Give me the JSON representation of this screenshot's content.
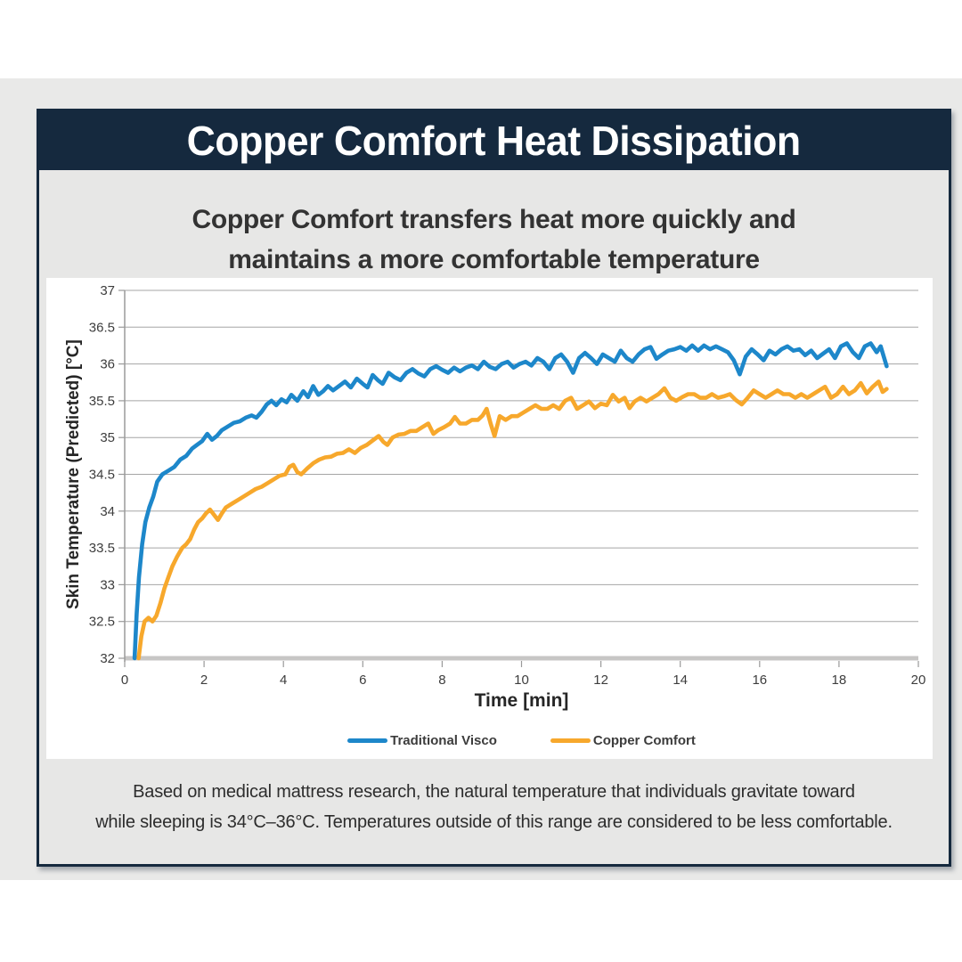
{
  "header": {
    "title": "Copper Comfort Heat Dissipation"
  },
  "subtitle": {
    "line1": "Copper Comfort transfers heat more quickly and",
    "line2": "maintains a more comfortable temperature"
  },
  "footer": {
    "line1": "Based on medical mattress research, the natural temperature that individuals gravitate toward",
    "line2": "while sleeping is 34°C–36°C. Temperatures outside of this range are considered to be less comfortable."
  },
  "colors": {
    "navy": "#15293e",
    "card_bg": "#e7e7e6",
    "band_bg": "#e9e9e8",
    "panel_bg": "#ffffff",
    "gridline": "#a5a5a5",
    "axis": "#9a9a9a",
    "baseline": "#c7c6c5",
    "blue": "#1d87ca",
    "orange": "#f7a82c"
  },
  "chart_data": {
    "type": "line",
    "title": "",
    "xlabel": "Time [min]",
    "ylabel": "Skin Temperature (Predicted) [°C]",
    "xlim": [
      0,
      20
    ],
    "ylim": [
      32,
      37
    ],
    "xtick_step": 2,
    "ytick_step": 0.5,
    "grid": "horizontal",
    "legend_position": "bottom",
    "series": [
      {
        "name": "Traditional Visco",
        "color": "#1d87ca",
        "points": [
          [
            0.25,
            32.0
          ],
          [
            0.3,
            32.6
          ],
          [
            0.36,
            33.1
          ],
          [
            0.44,
            33.55
          ],
          [
            0.52,
            33.85
          ],
          [
            0.62,
            34.05
          ],
          [
            0.72,
            34.2
          ],
          [
            0.82,
            34.4
          ],
          [
            0.95,
            34.5
          ],
          [
            1.1,
            34.55
          ],
          [
            1.25,
            34.6
          ],
          [
            1.4,
            34.7
          ],
          [
            1.55,
            34.75
          ],
          [
            1.7,
            34.85
          ],
          [
            1.82,
            34.9
          ],
          [
            1.95,
            34.95
          ],
          [
            2.08,
            35.05
          ],
          [
            2.2,
            34.97
          ],
          [
            2.32,
            35.02
          ],
          [
            2.45,
            35.1
          ],
          [
            2.6,
            35.15
          ],
          [
            2.75,
            35.2
          ],
          [
            2.9,
            35.22
          ],
          [
            3.05,
            35.27
          ],
          [
            3.2,
            35.3
          ],
          [
            3.32,
            35.27
          ],
          [
            3.45,
            35.35
          ],
          [
            3.58,
            35.45
          ],
          [
            3.7,
            35.5
          ],
          [
            3.82,
            35.44
          ],
          [
            3.95,
            35.52
          ],
          [
            4.08,
            35.48
          ],
          [
            4.2,
            35.58
          ],
          [
            4.35,
            35.5
          ],
          [
            4.5,
            35.63
          ],
          [
            4.62,
            35.55
          ],
          [
            4.75,
            35.7
          ],
          [
            4.88,
            35.58
          ],
          [
            5.0,
            35.63
          ],
          [
            5.12,
            35.7
          ],
          [
            5.25,
            35.64
          ],
          [
            5.4,
            35.7
          ],
          [
            5.55,
            35.76
          ],
          [
            5.7,
            35.68
          ],
          [
            5.85,
            35.8
          ],
          [
            6.0,
            35.73
          ],
          [
            6.12,
            35.68
          ],
          [
            6.25,
            35.85
          ],
          [
            6.38,
            35.78
          ],
          [
            6.5,
            35.73
          ],
          [
            6.65,
            35.88
          ],
          [
            6.8,
            35.82
          ],
          [
            6.95,
            35.78
          ],
          [
            7.1,
            35.88
          ],
          [
            7.25,
            35.93
          ],
          [
            7.4,
            35.87
          ],
          [
            7.55,
            35.83
          ],
          [
            7.7,
            35.93
          ],
          [
            7.85,
            35.97
          ],
          [
            8.0,
            35.92
          ],
          [
            8.15,
            35.88
          ],
          [
            8.3,
            35.95
          ],
          [
            8.45,
            35.9
          ],
          [
            8.6,
            35.95
          ],
          [
            8.75,
            35.98
          ],
          [
            8.9,
            35.93
          ],
          [
            9.05,
            36.03
          ],
          [
            9.2,
            35.96
          ],
          [
            9.35,
            35.93
          ],
          [
            9.5,
            36.0
          ],
          [
            9.65,
            36.03
          ],
          [
            9.8,
            35.95
          ],
          [
            9.95,
            36.0
          ],
          [
            10.1,
            36.03
          ],
          [
            10.25,
            35.98
          ],
          [
            10.4,
            36.08
          ],
          [
            10.55,
            36.03
          ],
          [
            10.7,
            35.93
          ],
          [
            10.85,
            36.08
          ],
          [
            11.0,
            36.13
          ],
          [
            11.15,
            36.03
          ],
          [
            11.3,
            35.88
          ],
          [
            11.45,
            36.08
          ],
          [
            11.6,
            36.15
          ],
          [
            11.75,
            36.08
          ],
          [
            11.9,
            36.0
          ],
          [
            12.05,
            36.13
          ],
          [
            12.2,
            36.08
          ],
          [
            12.35,
            36.03
          ],
          [
            12.5,
            36.18
          ],
          [
            12.65,
            36.08
          ],
          [
            12.8,
            36.03
          ],
          [
            12.95,
            36.13
          ],
          [
            13.1,
            36.2
          ],
          [
            13.25,
            36.23
          ],
          [
            13.4,
            36.07
          ],
          [
            13.55,
            36.13
          ],
          [
            13.7,
            36.18
          ],
          [
            13.85,
            36.2
          ],
          [
            14.0,
            36.23
          ],
          [
            14.15,
            36.18
          ],
          [
            14.3,
            36.25
          ],
          [
            14.45,
            36.18
          ],
          [
            14.6,
            36.25
          ],
          [
            14.75,
            36.2
          ],
          [
            14.9,
            36.24
          ],
          [
            15.05,
            36.2
          ],
          [
            15.2,
            36.16
          ],
          [
            15.35,
            36.05
          ],
          [
            15.5,
            35.86
          ],
          [
            15.65,
            36.1
          ],
          [
            15.8,
            36.2
          ],
          [
            15.95,
            36.13
          ],
          [
            16.1,
            36.05
          ],
          [
            16.25,
            36.18
          ],
          [
            16.4,
            36.13
          ],
          [
            16.55,
            36.2
          ],
          [
            16.7,
            36.24
          ],
          [
            16.85,
            36.18
          ],
          [
            17.0,
            36.2
          ],
          [
            17.15,
            36.12
          ],
          [
            17.3,
            36.18
          ],
          [
            17.45,
            36.08
          ],
          [
            17.6,
            36.14
          ],
          [
            17.75,
            36.2
          ],
          [
            17.9,
            36.08
          ],
          [
            18.05,
            36.24
          ],
          [
            18.2,
            36.28
          ],
          [
            18.35,
            36.16
          ],
          [
            18.5,
            36.08
          ],
          [
            18.65,
            36.24
          ],
          [
            18.8,
            36.28
          ],
          [
            18.95,
            36.16
          ],
          [
            19.05,
            36.24
          ],
          [
            19.2,
            35.97
          ]
        ]
      },
      {
        "name": "Copper Comfort",
        "color": "#f7a82c",
        "points": [
          [
            0.35,
            32.0
          ],
          [
            0.42,
            32.3
          ],
          [
            0.5,
            32.5
          ],
          [
            0.6,
            32.55
          ],
          [
            0.7,
            32.5
          ],
          [
            0.8,
            32.58
          ],
          [
            0.9,
            32.75
          ],
          [
            1.0,
            32.95
          ],
          [
            1.1,
            33.1
          ],
          [
            1.2,
            33.25
          ],
          [
            1.32,
            33.38
          ],
          [
            1.45,
            33.5
          ],
          [
            1.55,
            33.55
          ],
          [
            1.65,
            33.62
          ],
          [
            1.75,
            33.75
          ],
          [
            1.85,
            33.85
          ],
          [
            1.95,
            33.9
          ],
          [
            2.05,
            33.97
          ],
          [
            2.15,
            34.02
          ],
          [
            2.25,
            33.95
          ],
          [
            2.35,
            33.88
          ],
          [
            2.45,
            33.97
          ],
          [
            2.55,
            34.05
          ],
          [
            2.7,
            34.1
          ],
          [
            2.85,
            34.15
          ],
          [
            3.0,
            34.2
          ],
          [
            3.15,
            34.25
          ],
          [
            3.3,
            34.3
          ],
          [
            3.45,
            34.33
          ],
          [
            3.6,
            34.38
          ],
          [
            3.75,
            34.43
          ],
          [
            3.9,
            34.48
          ],
          [
            4.05,
            34.5
          ],
          [
            4.15,
            34.6
          ],
          [
            4.25,
            34.63
          ],
          [
            4.35,
            34.53
          ],
          [
            4.45,
            34.5
          ],
          [
            4.6,
            34.58
          ],
          [
            4.75,
            34.65
          ],
          [
            4.9,
            34.7
          ],
          [
            5.05,
            34.73
          ],
          [
            5.2,
            34.74
          ],
          [
            5.35,
            34.78
          ],
          [
            5.5,
            34.79
          ],
          [
            5.65,
            34.84
          ],
          [
            5.8,
            34.79
          ],
          [
            5.95,
            34.86
          ],
          [
            6.1,
            34.9
          ],
          [
            6.25,
            34.96
          ],
          [
            6.4,
            35.02
          ],
          [
            6.52,
            34.94
          ],
          [
            6.62,
            34.9
          ],
          [
            6.75,
            35.0
          ],
          [
            6.9,
            35.04
          ],
          [
            7.05,
            35.05
          ],
          [
            7.2,
            35.09
          ],
          [
            7.35,
            35.09
          ],
          [
            7.5,
            35.14
          ],
          [
            7.65,
            35.19
          ],
          [
            7.78,
            35.05
          ],
          [
            7.9,
            35.1
          ],
          [
            8.05,
            35.14
          ],
          [
            8.2,
            35.19
          ],
          [
            8.32,
            35.28
          ],
          [
            8.45,
            35.19
          ],
          [
            8.6,
            35.19
          ],
          [
            8.75,
            35.24
          ],
          [
            8.9,
            35.24
          ],
          [
            9.02,
            35.3
          ],
          [
            9.12,
            35.39
          ],
          [
            9.22,
            35.19
          ],
          [
            9.32,
            35.02
          ],
          [
            9.45,
            35.29
          ],
          [
            9.6,
            35.24
          ],
          [
            9.75,
            35.29
          ],
          [
            9.9,
            35.29
          ],
          [
            10.05,
            35.34
          ],
          [
            10.2,
            35.39
          ],
          [
            10.35,
            35.44
          ],
          [
            10.5,
            35.39
          ],
          [
            10.65,
            35.39
          ],
          [
            10.8,
            35.44
          ],
          [
            10.95,
            35.39
          ],
          [
            11.1,
            35.5
          ],
          [
            11.25,
            35.54
          ],
          [
            11.4,
            35.39
          ],
          [
            11.55,
            35.44
          ],
          [
            11.7,
            35.49
          ],
          [
            11.85,
            35.4
          ],
          [
            12.0,
            35.46
          ],
          [
            12.15,
            35.44
          ],
          [
            12.3,
            35.58
          ],
          [
            12.45,
            35.49
          ],
          [
            12.6,
            35.54
          ],
          [
            12.72,
            35.4
          ],
          [
            12.85,
            35.49
          ],
          [
            13.0,
            35.54
          ],
          [
            13.15,
            35.49
          ],
          [
            13.3,
            35.54
          ],
          [
            13.45,
            35.59
          ],
          [
            13.6,
            35.67
          ],
          [
            13.75,
            35.54
          ],
          [
            13.9,
            35.5
          ],
          [
            14.05,
            35.55
          ],
          [
            14.2,
            35.59
          ],
          [
            14.35,
            35.59
          ],
          [
            14.5,
            35.54
          ],
          [
            14.65,
            35.54
          ],
          [
            14.8,
            35.59
          ],
          [
            14.95,
            35.54
          ],
          [
            15.1,
            35.56
          ],
          [
            15.25,
            35.59
          ],
          [
            15.4,
            35.51
          ],
          [
            15.55,
            35.45
          ],
          [
            15.7,
            35.54
          ],
          [
            15.85,
            35.64
          ],
          [
            16.0,
            35.59
          ],
          [
            16.15,
            35.54
          ],
          [
            16.3,
            35.59
          ],
          [
            16.45,
            35.64
          ],
          [
            16.6,
            35.59
          ],
          [
            16.75,
            35.59
          ],
          [
            16.9,
            35.54
          ],
          [
            17.05,
            35.59
          ],
          [
            17.2,
            35.54
          ],
          [
            17.35,
            35.59
          ],
          [
            17.5,
            35.64
          ],
          [
            17.65,
            35.69
          ],
          [
            17.8,
            35.54
          ],
          [
            17.95,
            35.59
          ],
          [
            18.1,
            35.69
          ],
          [
            18.25,
            35.59
          ],
          [
            18.4,
            35.64
          ],
          [
            18.55,
            35.74
          ],
          [
            18.7,
            35.6
          ],
          [
            18.85,
            35.69
          ],
          [
            19.0,
            35.76
          ],
          [
            19.1,
            35.62
          ],
          [
            19.2,
            35.66
          ]
        ]
      }
    ]
  }
}
